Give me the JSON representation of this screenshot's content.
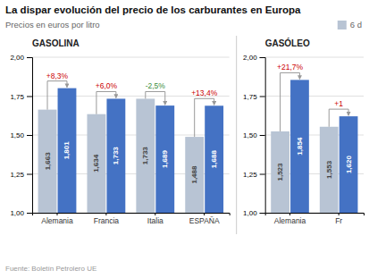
{
  "title": "La dispar evolución del precio de los carburantes en Europa",
  "subtitle": "Precios en euros por litro",
  "source": "Fuente: Boletín Petrolero UE",
  "chart_data": [
    {
      "type": "bar",
      "title": "GASOLINA",
      "categories": [
        "Alemania",
        "Francia",
        "Italia",
        "ESPAÑA"
      ],
      "series": [
        {
          "name": "6 d",
          "color": "#b8c4d4",
          "values": [
            1.663,
            1.634,
            1.733,
            1.488
          ],
          "value_labels": [
            "1,663",
            "1,634",
            "1,733",
            "1,488"
          ]
        },
        {
          "color": "#4472c4",
          "values": [
            1.801,
            1.733,
            1.689,
            1.688
          ],
          "value_labels": [
            "1,801",
            "1,733",
            "1,689",
            "1,688"
          ]
        }
      ],
      "annotations": [
        {
          "text": "+8,3%",
          "color": "#cc0000"
        },
        {
          "text": "+6,0%",
          "color": "#cc0000"
        },
        {
          "text": "-2,5%",
          "color": "#3a8c3a"
        },
        {
          "text": "+13,4%",
          "color": "#cc0000"
        }
      ],
      "ylim": [
        1.0,
        2.0
      ],
      "yticks": [
        {
          "value": 1.0,
          "label": "1,00"
        },
        {
          "value": 1.25,
          "label": "1,25"
        },
        {
          "value": 1.5,
          "label": "1,50"
        },
        {
          "value": 1.75,
          "label": "1,75"
        },
        {
          "value": 2.0,
          "label": "2,00"
        }
      ],
      "grid": true,
      "legend": "upper right",
      "data_labels": true
    },
    {
      "type": "bar",
      "title": "GASÓLEO",
      "categories": [
        "Alemania",
        "Fr"
      ],
      "series": [
        {
          "color": "#b8c4d4",
          "values": [
            1.523,
            1.553
          ],
          "value_labels": [
            "1,523",
            "1,553"
          ]
        },
        {
          "color": "#4472c4",
          "values": [
            1.854,
            1.62
          ],
          "value_labels": [
            "1,854",
            "1,620"
          ]
        }
      ],
      "annotations": [
        {
          "text": "+21,7%",
          "color": "#cc0000"
        },
        {
          "text": "+1",
          "color": "#cc0000"
        }
      ],
      "ylim": [
        1.0,
        2.0
      ],
      "yticks": [
        {
          "value": 1.0,
          "label": "1,00"
        },
        {
          "value": 1.25,
          "label": "1,25"
        },
        {
          "value": 1.5,
          "label": "1,50"
        },
        {
          "value": 1.75,
          "label": "1,75"
        },
        {
          "value": 2.0,
          "label": "2,00"
        }
      ],
      "grid": true,
      "data_labels": true
    }
  ]
}
